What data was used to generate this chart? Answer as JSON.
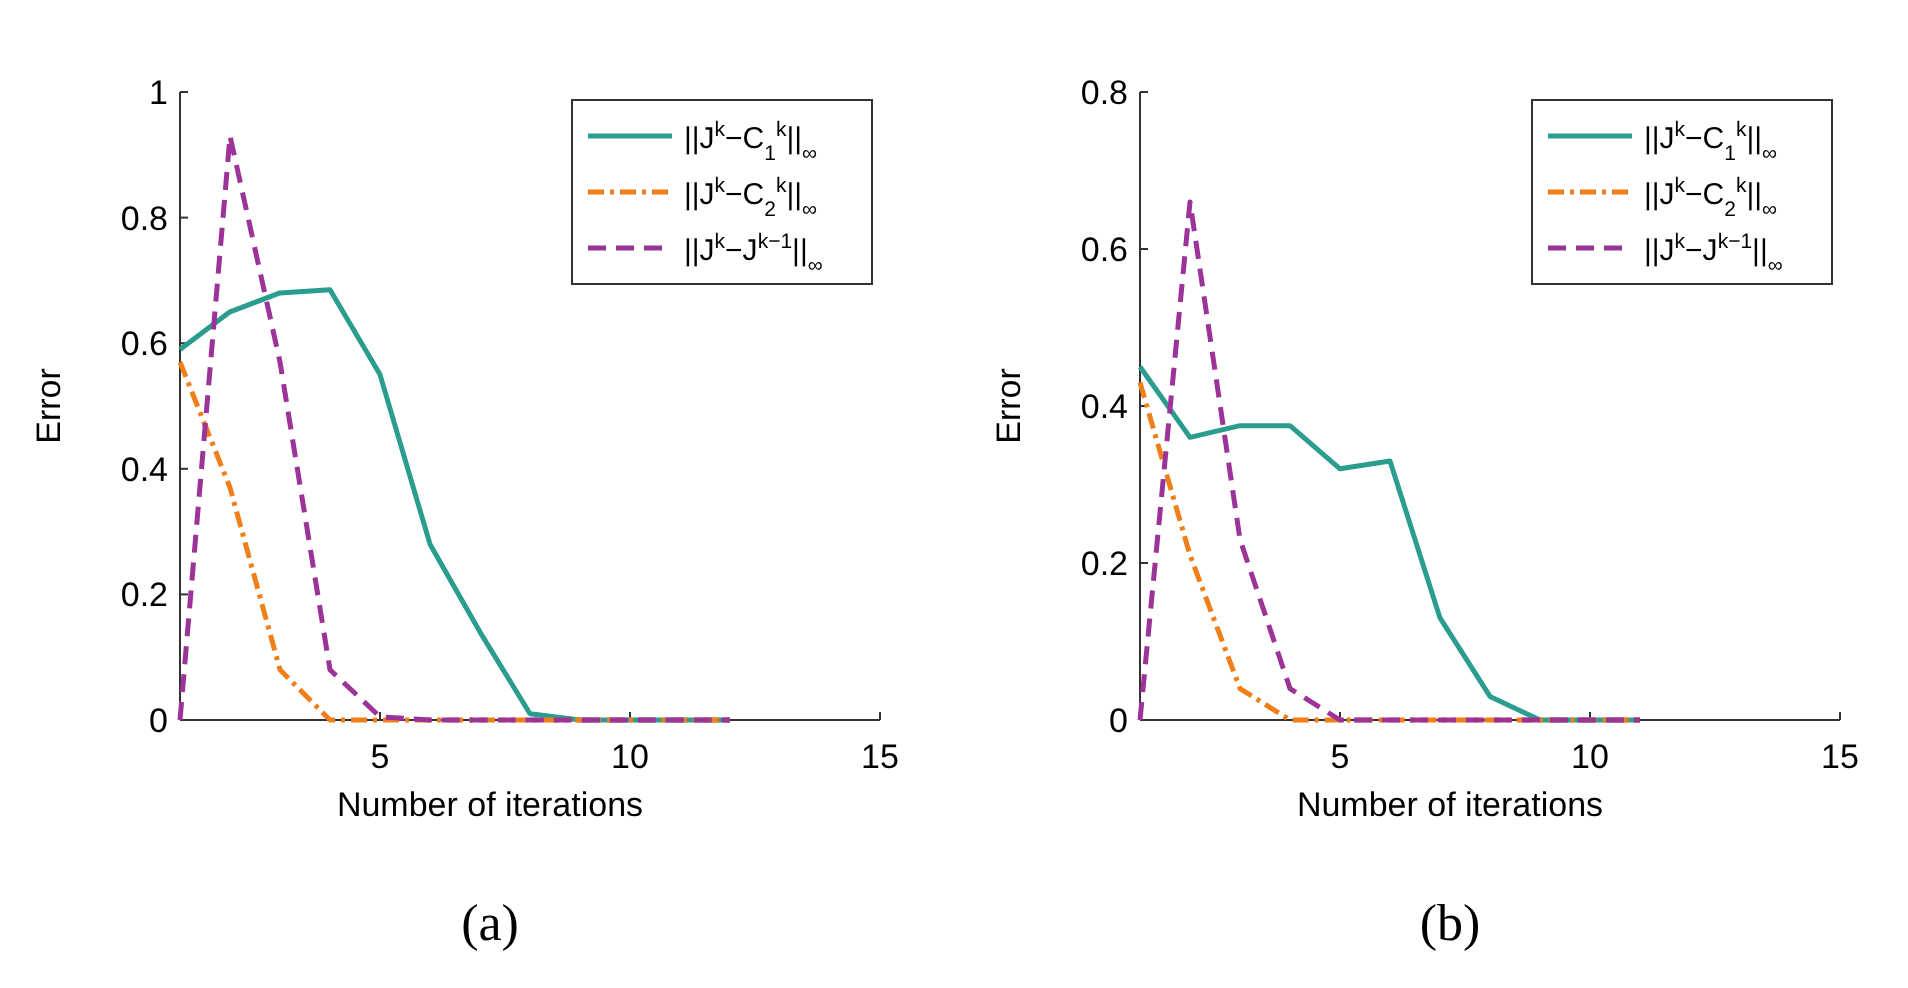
{
  "chart_data": [
    {
      "type": "line",
      "xlabel": "Number of iterations",
      "ylabel": "Error",
      "xlim": [
        1,
        15
      ],
      "xticks": [
        5,
        10,
        15
      ],
      "ylim": [
        0,
        1
      ],
      "yticks": [
        0,
        0.2,
        0.4,
        0.6,
        0.8,
        1
      ],
      "legend": "top right",
      "grid": false,
      "annotations": [
        "(a)"
      ],
      "x": [
        1,
        2,
        3,
        4,
        5,
        6,
        7,
        8,
        9,
        10,
        11,
        12
      ],
      "series": [
        {
          "name": "||J$^{k}$−C$_{1}$$^{k}$||$_{∞}$",
          "color": "#2a9d8f",
          "line_style": "solid",
          "values": [
            0.59,
            0.65,
            0.68,
            0.685,
            0.55,
            0.28,
            0.14,
            0.01,
            0,
            0,
            0,
            0
          ]
        },
        {
          "name": "||J$^{k}$−C$_{2}$$^{k}$||$_{∞}$",
          "color": "#f07f1a",
          "line_style": "dotted",
          "values": [
            0.57,
            0.37,
            0.08,
            0,
            0,
            0,
            0,
            0,
            0,
            0,
            0,
            0
          ]
        },
        {
          "name": "||J$^{k}$−J$^{k−1}$||$_{∞}$",
          "color": "#9b3399",
          "line_style": "dashed",
          "values": [
            0,
            0.93,
            0.57,
            0.08,
            0.005,
            0,
            0,
            0,
            0,
            0,
            0,
            0
          ]
        }
      ]
    },
    {
      "type": "line",
      "xlabel": "Number of iterations",
      "ylabel": "Error",
      "xlim": [
        1,
        15
      ],
      "xticks": [
        5,
        10,
        15
      ],
      "ylim": [
        0,
        0.8
      ],
      "yticks": [
        0,
        0.2,
        0.4,
        0.6,
        0.8
      ],
      "legend": "top right",
      "grid": false,
      "annotations": [
        "(b)"
      ],
      "x": [
        1,
        2,
        3,
        4,
        5,
        6,
        7,
        8,
        9,
        10,
        11
      ],
      "series": [
        {
          "name": "||J$^{k}$−C$_{1}$$^{k}$||$_{∞}$",
          "color": "#2a9d8f",
          "line_style": "solid",
          "values": [
            0.45,
            0.36,
            0.375,
            0.375,
            0.32,
            0.33,
            0.13,
            0.03,
            0,
            0,
            0
          ]
        },
        {
          "name": "||J$^{k}$−C$_{2}$$^{k}$||$_{∞}$",
          "color": "#f07f1a",
          "line_style": "dotted",
          "values": [
            0.43,
            0.21,
            0.04,
            0,
            0,
            0,
            0,
            0,
            0,
            0,
            0
          ]
        },
        {
          "name": "||J$^{k}$−J$^{k−1}$||$_{∞}$",
          "color": "#9b3399",
          "line_style": "dashed",
          "values": [
            0,
            0.66,
            0.23,
            0.04,
            0,
            0,
            0,
            0,
            0,
            0,
            0
          ]
        }
      ]
    }
  ]
}
